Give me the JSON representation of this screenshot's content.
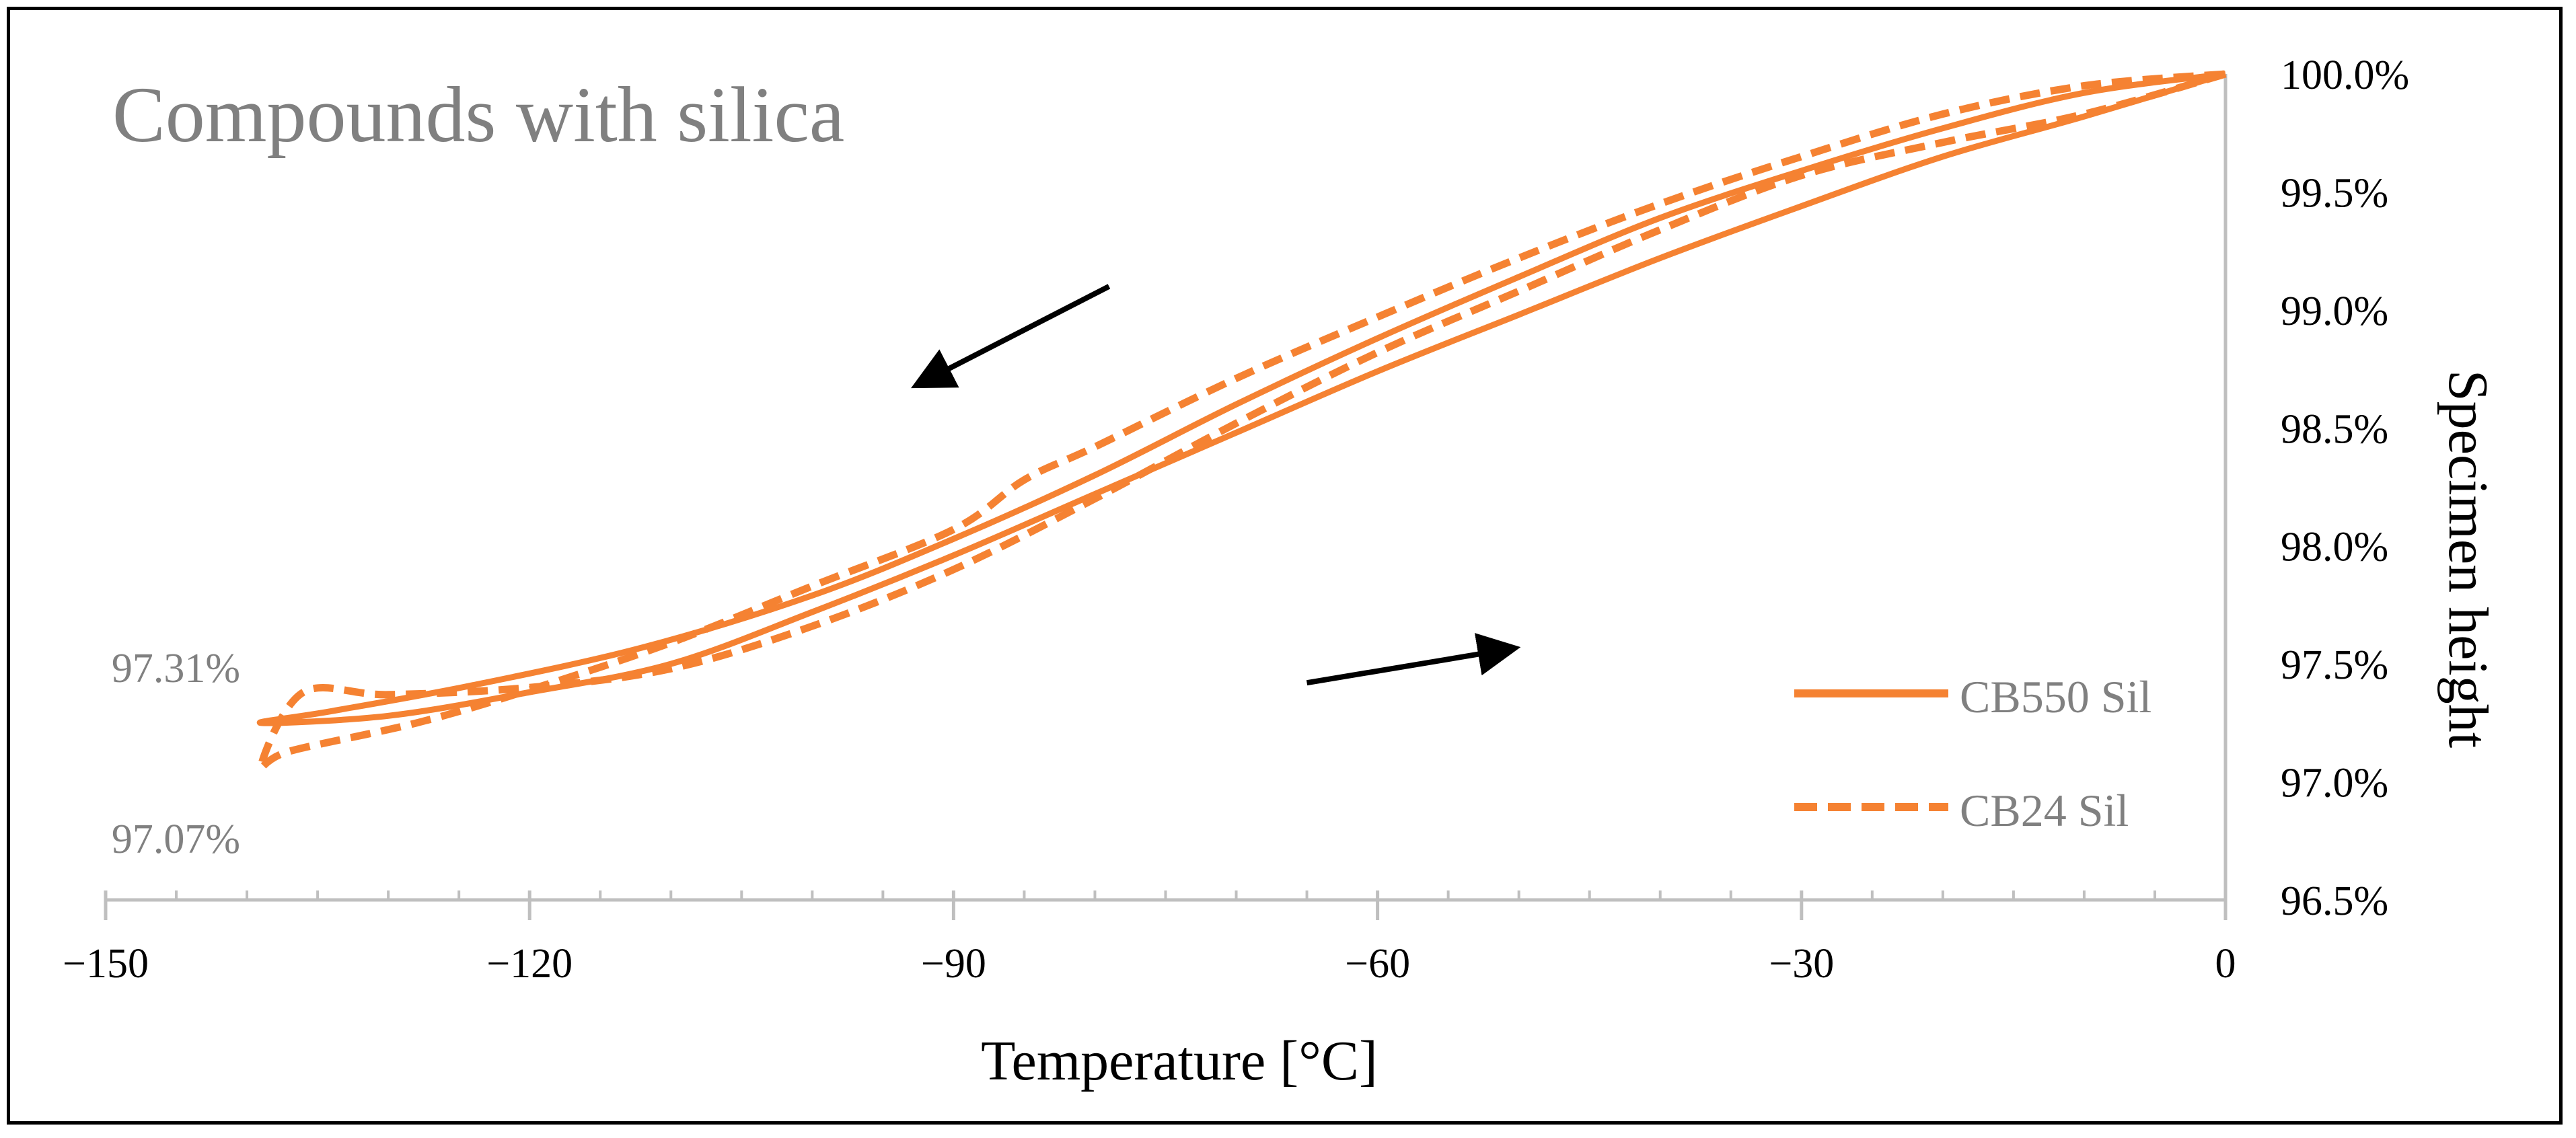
{
  "chart_data": {
    "type": "line",
    "title": "Compounds with silica",
    "xlabel": "Temperature [°C]",
    "ylabel": "Specimen height",
    "xlim": [
      -150,
      0
    ],
    "ylim": [
      96.5,
      100.0
    ],
    "x_ticks": [
      -150,
      -120,
      -90,
      -60,
      -30,
      0
    ],
    "x_tick_labels": [
      "−150",
      "−120",
      "−90",
      "−60",
      "−30",
      "0"
    ],
    "x_minor_step": 5,
    "y_ticks": [
      96.5,
      97.0,
      97.5,
      98.0,
      98.5,
      99.0,
      99.5,
      100.0
    ],
    "y_tick_labels": [
      "96.5%",
      "97.0%",
      "97.5%",
      "98.0%",
      "98.5%",
      "99.0%",
      "99.5%",
      "100.0%"
    ],
    "y_axis_side": "right",
    "grid": false,
    "legend_position": "right",
    "series": [
      {
        "name": "CB550 Sil",
        "style": "solid",
        "color": "#F58232",
        "points": [
          [
            0,
            100.0
          ],
          [
            -10,
            99.82
          ],
          [
            -20,
            99.65
          ],
          [
            -30,
            99.44
          ],
          [
            -40,
            99.22
          ],
          [
            -50,
            98.98
          ],
          [
            -60,
            98.74
          ],
          [
            -70,
            98.48
          ],
          [
            -80,
            98.22
          ],
          [
            -90,
            97.96
          ],
          [
            -100,
            97.72
          ],
          [
            -110,
            97.5
          ],
          [
            -120,
            97.38
          ],
          [
            -130,
            97.28
          ],
          [
            -139,
            97.25
          ],
          [
            -134,
            97.3
          ],
          [
            -124,
            97.41
          ],
          [
            -112,
            97.57
          ],
          [
            -100,
            97.79
          ],
          [
            -90,
            98.03
          ],
          [
            -80,
            98.3
          ],
          [
            -70,
            98.6
          ],
          [
            -60,
            98.88
          ],
          [
            -50,
            99.14
          ],
          [
            -40,
            99.39
          ],
          [
            -30,
            99.59
          ],
          [
            -20,
            99.77
          ],
          [
            -10,
            99.92
          ],
          [
            0,
            100.0
          ]
        ]
      },
      {
        "name": "CB24 Sil",
        "style": "dashed",
        "color": "#F58232",
        "points": [
          [
            0,
            100.0
          ],
          [
            -10,
            99.83
          ],
          [
            -20,
            99.71
          ],
          [
            -30,
            99.57
          ],
          [
            -40,
            99.34
          ],
          [
            -50,
            99.08
          ],
          [
            -60,
            98.82
          ],
          [
            -70,
            98.52
          ],
          [
            -80,
            98.2
          ],
          [
            -90,
            97.9
          ],
          [
            -100,
            97.66
          ],
          [
            -110,
            97.48
          ],
          [
            -120,
            97.4
          ],
          [
            -130,
            97.37
          ],
          [
            -136,
            97.38
          ],
          [
            -139,
            97.07
          ],
          [
            -137,
            97.13
          ],
          [
            -128,
            97.25
          ],
          [
            -120,
            97.39
          ],
          [
            -110,
            97.59
          ],
          [
            -100,
            97.83
          ],
          [
            -90,
            98.07
          ],
          [
            -85,
            98.28
          ],
          [
            -80,
            98.42
          ],
          [
            -70,
            98.71
          ],
          [
            -60,
            98.97
          ],
          [
            -50,
            99.22
          ],
          [
            -40,
            99.45
          ],
          [
            -30,
            99.65
          ],
          [
            -20,
            99.83
          ],
          [
            -10,
            99.95
          ],
          [
            0,
            100.0
          ]
        ]
      }
    ],
    "annotations": [
      {
        "text": "97.31%",
        "x": -150,
        "y": 97.31
      },
      {
        "text": "97.07%",
        "x": -150,
        "y": 97.07
      }
    ],
    "arrows": [
      {
        "from": [
          -79,
          99.1
        ],
        "to": [
          -92,
          98.7
        ]
      },
      {
        "from": [
          -65,
          97.42
        ],
        "to": [
          -51,
          97.56
        ]
      }
    ]
  }
}
